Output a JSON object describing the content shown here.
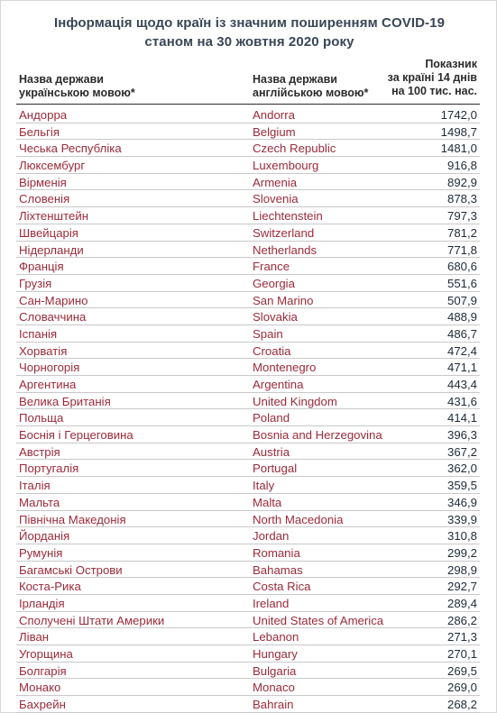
{
  "title": {
    "line1": "Інформація щодо країн із значним поширенням COVID-19",
    "line2": "станом на 30 жовтня 2020 року"
  },
  "headers": {
    "ua_line1": "Назва держави",
    "ua_line2": "українською мовою*",
    "en_line1": "Назва держави",
    "en_line2": "англійською мовою*",
    "val_line1": "Показник",
    "val_line2": "за країні 14 днів",
    "val_line3": "на 100 тис. нас."
  },
  "colors": {
    "country_text": "#9c2a3a",
    "value_text": "#1f2a37",
    "title_text": "#3a4656"
  },
  "rows": [
    {
      "ua": "Андорра",
      "en": "Andorra",
      "value": "1742,0"
    },
    {
      "ua": "Бельгія",
      "en": "Belgium",
      "value": "1498,7"
    },
    {
      "ua": "Чеська Республіка",
      "en": "Czech Republic",
      "value": "1481,0"
    },
    {
      "ua": "Люксембург",
      "en": "Luxembourg",
      "value": "916,8"
    },
    {
      "ua": "Вірменія",
      "en": "Armenia",
      "value": "892,9"
    },
    {
      "ua": "Словенія",
      "en": "Slovenia",
      "value": "878,3"
    },
    {
      "ua": "Ліхтенштейн",
      "en": "Liechtenstein",
      "value": "797,3"
    },
    {
      "ua": "Швейцарія",
      "en": "Switzerland",
      "value": "781,2"
    },
    {
      "ua": "Нідерланди",
      "en": "Netherlands",
      "value": "771,8"
    },
    {
      "ua": "Франція",
      "en": "France",
      "value": "680,6"
    },
    {
      "ua": "Грузія",
      "en": "Georgia",
      "value": "551,6"
    },
    {
      "ua": "Сан-Марино",
      "en": "San Marino",
      "value": "507,9"
    },
    {
      "ua": "Словаччина",
      "en": "Slovakia",
      "value": "488,9"
    },
    {
      "ua": "Іспанія",
      "en": "Spain",
      "value": "486,7"
    },
    {
      "ua": "Хорватія",
      "en": "Croatia",
      "value": "472,4"
    },
    {
      "ua": "Чорногорія",
      "en": "Montenegro",
      "value": "471,1"
    },
    {
      "ua": "Аргентина",
      "en": "Argentina",
      "value": "443,4"
    },
    {
      "ua": "Велика Британія",
      "en": "United Kingdom",
      "value": "431,6"
    },
    {
      "ua": "Польща",
      "en": "Poland",
      "value": "414,1"
    },
    {
      "ua": "Боснія і Герцеговина",
      "en": "Bosnia and Herzegovina",
      "value": "396,3"
    },
    {
      "ua": "Австрія",
      "en": "Austria",
      "value": "367,2"
    },
    {
      "ua": "Португалія",
      "en": "Portugal",
      "value": "362,0"
    },
    {
      "ua": "Італія",
      "en": "Italy",
      "value": "359,5"
    },
    {
      "ua": "Мальта",
      "en": "Malta",
      "value": "346,9"
    },
    {
      "ua": "Північна Македонія",
      "en": "North Macedonia",
      "value": "339,9"
    },
    {
      "ua": "Йорданія",
      "en": "Jordan",
      "value": "310,8"
    },
    {
      "ua": "Румунія",
      "en": "Romania",
      "value": "299,2"
    },
    {
      "ua": "Багамські Острови",
      "en": "Bahamas",
      "value": "298,9"
    },
    {
      "ua": "Коста-Рика",
      "en": "Costa Rica",
      "value": "292,7"
    },
    {
      "ua": "Ірландія",
      "en": "Ireland",
      "value": "289,4"
    },
    {
      "ua": "Сполучені Штати Америки",
      "en": "United States of America",
      "value": "286,2"
    },
    {
      "ua": "Ліван",
      "en": "Lebanon",
      "value": "271,3"
    },
    {
      "ua": "Угорщина",
      "en": "Hungary",
      "value": "270,1"
    },
    {
      "ua": "Болгарія",
      "en": "Bulgaria",
      "value": "269,5"
    },
    {
      "ua": "Монако",
      "en": "Monaco",
      "value": "269,0"
    },
    {
      "ua": "Бахрейн",
      "en": "Bahrain",
      "value": "268,2"
    }
  ]
}
